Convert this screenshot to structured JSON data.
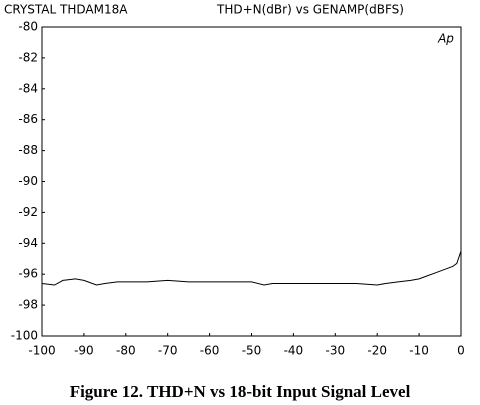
{
  "chart_data": {
    "type": "line",
    "title": "CRYSTAL  THDAM18A",
    "subtitle": "THD+N(dBr)   vs   GENAMP(dBFS)",
    "annotation": "Ap",
    "caption": "Figure 12.  THD+N vs 18-bit Input Signal Level",
    "x": [
      -100,
      -97,
      -95,
      -92,
      -90,
      -87,
      -85,
      -82,
      -80,
      -75,
      -70,
      -65,
      -60,
      -55,
      -50,
      -47,
      -45,
      -40,
      -35,
      -30,
      -25,
      -20,
      -18,
      -15,
      -12,
      -10,
      -8,
      -6,
      -4,
      -2,
      -1,
      0
    ],
    "series": [
      {
        "color": "#000000",
        "values": [
          -96.6,
          -96.7,
          -96.4,
          -96.3,
          -96.4,
          -96.7,
          -96.6,
          -96.5,
          -96.5,
          -96.5,
          -96.4,
          -96.5,
          -96.5,
          -96.5,
          -96.5,
          -96.7,
          -96.6,
          -96.6,
          -96.6,
          -96.6,
          -96.6,
          -96.7,
          -96.6,
          -96.5,
          -96.4,
          -96.3,
          -96.1,
          -95.9,
          -95.7,
          -95.5,
          -95.3,
          -94.5
        ]
      }
    ],
    "xlim": [
      -100,
      0
    ],
    "xticks": [
      -100,
      -90,
      -80,
      -70,
      -60,
      -50,
      -40,
      -30,
      -20,
      -10,
      0
    ],
    "ylim": [
      -100,
      -80
    ],
    "yticks": [
      -80,
      -82,
      -84,
      -86,
      -88,
      -90,
      -92,
      -94,
      -96,
      -98,
      -100
    ],
    "grid": false
  }
}
